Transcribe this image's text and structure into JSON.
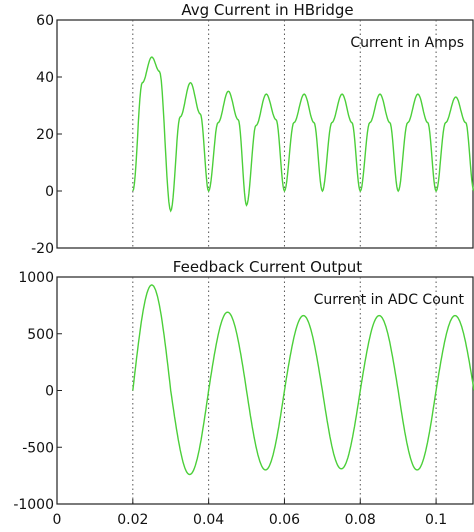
{
  "chart_data": [
    {
      "type": "line",
      "title": "Avg Current in HBridge",
      "annotation": "Current in Amps",
      "xlabel": "",
      "ylabel": "",
      "xlim": [
        0,
        0.11
      ],
      "ylim": [
        -20,
        60
      ],
      "yticks": [
        -20,
        0,
        20,
        40,
        60
      ],
      "ytick_labels": [
        "-20",
        "0",
        "20",
        "40",
        "60"
      ],
      "xgrid": [
        0.02,
        0.04,
        0.06,
        0.08,
        0.1
      ],
      "grid": "vertical dotted",
      "line_color": "#4ccf3a",
      "series": [
        {
          "x": [
            0.02,
            0.0225,
            0.025,
            0.027,
            0.03,
            0.0325,
            0.0352,
            0.0378,
            0.04,
            0.0425,
            0.0452,
            0.0478,
            0.05,
            0.0525,
            0.0552,
            0.0578,
            0.06,
            0.0625,
            0.0652,
            0.0678,
            0.07,
            0.0725,
            0.0752,
            0.0778,
            0.08,
            0.0825,
            0.0852,
            0.0878,
            0.09,
            0.0925,
            0.0952,
            0.0978,
            0.1,
            0.1025,
            0.1052,
            0.1078,
            0.11
          ],
          "y": [
            0,
            38,
            47,
            42,
            -7,
            26,
            38,
            27,
            0,
            24,
            35,
            25,
            -5,
            23,
            34,
            25,
            0,
            24,
            34,
            24,
            0,
            24,
            34,
            24,
            0,
            24,
            34,
            24,
            0,
            24,
            34,
            24,
            0,
            24,
            33,
            24,
            0
          ]
        }
      ]
    },
    {
      "type": "line",
      "title": "Feedback Current Output",
      "annotation": "Current in ADC Count",
      "xlabel": "",
      "ylabel": "",
      "xlim": [
        0,
        0.11
      ],
      "ylim": [
        -1000,
        1000
      ],
      "yticks": [
        -1000,
        -500,
        0,
        500,
        1000
      ],
      "ytick_labels": [
        "-1000",
        "-500",
        "0",
        "500",
        "1000"
      ],
      "xticks": [
        0,
        0.02,
        0.04,
        0.06,
        0.08,
        0.1
      ],
      "xtick_labels": [
        "0",
        "0.02",
        "0.04",
        "0.06",
        "0.08",
        "0.1"
      ],
      "xgrid": [
        0.02,
        0.04,
        0.06,
        0.08,
        0.1
      ],
      "grid": "vertical dotted",
      "line_color": "#4ccf3a",
      "series": [
        {
          "amplitudes": [
            930,
            -740,
            690,
            -700,
            660,
            -690,
            660,
            -700,
            660,
            -690
          ],
          "start": 0.02,
          "period": 0.02
        }
      ]
    }
  ]
}
